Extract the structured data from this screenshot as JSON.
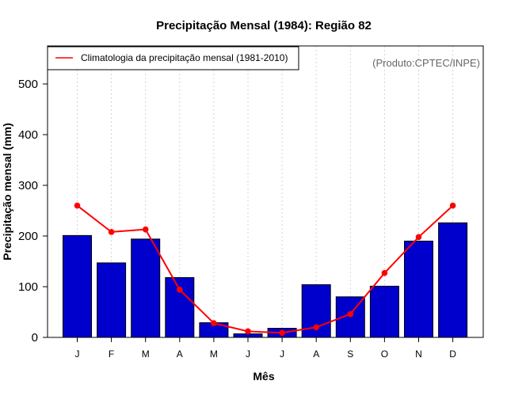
{
  "chart_data": {
    "type": "bar",
    "title": "Precipitação Mensal (1984): Região 82",
    "xlabel": "Mês",
    "ylabel": "Precipitação mensal (mm)",
    "credit": "(Produto:CPTEC/INPE)",
    "categories": [
      "J",
      "F",
      "M",
      "A",
      "M",
      "J",
      "J",
      "A",
      "S",
      "O",
      "N",
      "D"
    ],
    "yticks": [
      0,
      100,
      200,
      300,
      400,
      500
    ],
    "ylim": [
      0,
      575
    ],
    "grid": "vertical dotted",
    "legend_position": "top-left",
    "series": [
      {
        "name": "Precipitação mensal (1984)",
        "kind": "bar",
        "color": "#0000CD",
        "values": [
          201,
          147,
          194,
          118,
          29,
          7,
          18,
          104,
          80,
          101,
          190,
          226
        ]
      },
      {
        "name": "Climatologia da precipitação mensal (1981-2010)",
        "kind": "line",
        "color": "#FF0000",
        "values": [
          260,
          208,
          213,
          94,
          28,
          12,
          9,
          20,
          46,
          127,
          198,
          260
        ]
      }
    ]
  }
}
